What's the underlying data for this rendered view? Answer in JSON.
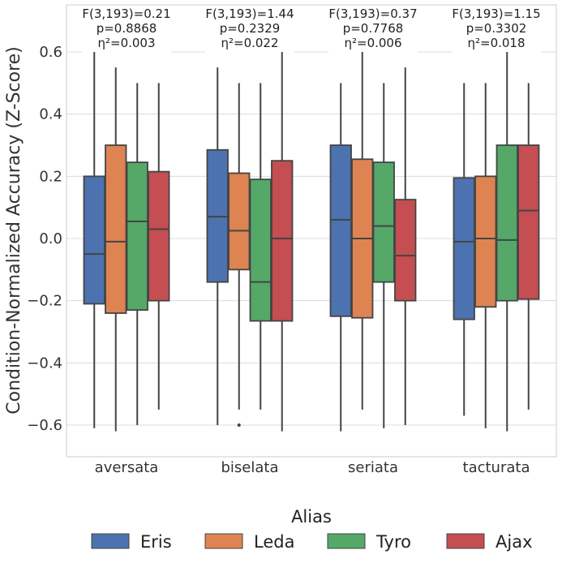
{
  "chart_data": {
    "type": "box",
    "ylabel": "Condition-Normalized Accuracy (Z-Score)",
    "xlabel": "",
    "ylim": [
      -0.7,
      0.75
    ],
    "yticks": [
      0.6,
      0.4,
      0.2,
      0.0,
      -0.2,
      -0.4,
      -0.6
    ],
    "ytick_labels": [
      "0.6",
      "0.4",
      "0.2",
      "0.0",
      "−0.2",
      "−0.4",
      "−0.6"
    ],
    "categories": [
      "aversata",
      "biselata",
      "seriata",
      "tacturata"
    ],
    "legend": {
      "title": "Alias",
      "position": "bottom-center",
      "entries": [
        "Eris",
        "Leda",
        "Tyro",
        "Ajax"
      ]
    },
    "colors": {
      "Eris": "#4c72b0",
      "Leda": "#dd8452",
      "Tyro": "#55a868",
      "Ajax": "#c44e52"
    },
    "annotations": [
      {
        "f": "F(3,193)=0.21",
        "p": "p=0.8868",
        "eta": "η²=0.003"
      },
      {
        "f": "F(3,193)=1.44",
        "p": "p=0.2329",
        "eta": "η²=0.022"
      },
      {
        "f": "F(3,193)=0.37",
        "p": "p=0.7768",
        "eta": "η²=0.006"
      },
      {
        "f": "F(3,193)=1.15",
        "p": "p=0.3302",
        "eta": "η²=0.018"
      }
    ],
    "series": [
      {
        "name": "Eris",
        "boxes": [
          {
            "min": -0.61,
            "q1": -0.21,
            "median": -0.05,
            "q3": 0.2,
            "max": 0.6,
            "outliers": []
          },
          {
            "min": -0.6,
            "q1": -0.14,
            "median": 0.07,
            "q3": 0.285,
            "max": 0.55,
            "outliers": []
          },
          {
            "min": -0.62,
            "q1": -0.25,
            "median": 0.06,
            "q3": 0.3,
            "max": 0.5,
            "outliers": []
          },
          {
            "min": -0.57,
            "q1": -0.26,
            "median": -0.01,
            "q3": 0.195,
            "max": 0.5,
            "outliers": []
          }
        ]
      },
      {
        "name": "Leda",
        "boxes": [
          {
            "min": -0.62,
            "q1": -0.24,
            "median": -0.01,
            "q3": 0.3,
            "max": 0.55,
            "outliers": []
          },
          {
            "min": -0.55,
            "q1": -0.1,
            "median": 0.025,
            "q3": 0.21,
            "max": 0.5,
            "outliers": [
              -0.6
            ]
          },
          {
            "min": -0.55,
            "q1": -0.255,
            "median": 0.0,
            "q3": 0.255,
            "max": 0.6,
            "outliers": []
          },
          {
            "min": -0.61,
            "q1": -0.22,
            "median": 0.0,
            "q3": 0.2,
            "max": 0.5,
            "outliers": []
          }
        ]
      },
      {
        "name": "Tyro",
        "boxes": [
          {
            "min": -0.6,
            "q1": -0.23,
            "median": 0.055,
            "q3": 0.245,
            "max": 0.5,
            "outliers": []
          },
          {
            "min": -0.55,
            "q1": -0.265,
            "median": -0.14,
            "q3": 0.19,
            "max": 0.5,
            "outliers": []
          },
          {
            "min": -0.61,
            "q1": -0.14,
            "median": 0.04,
            "q3": 0.245,
            "max": 0.5,
            "outliers": []
          },
          {
            "min": -0.62,
            "q1": -0.2,
            "median": -0.005,
            "q3": 0.3,
            "max": 0.6,
            "outliers": []
          }
        ]
      },
      {
        "name": "Ajax",
        "boxes": [
          {
            "min": -0.55,
            "q1": -0.2,
            "median": 0.03,
            "q3": 0.215,
            "max": 0.5,
            "outliers": []
          },
          {
            "min": -0.62,
            "q1": -0.265,
            "median": 0.0,
            "q3": 0.25,
            "max": 0.6,
            "outliers": []
          },
          {
            "min": -0.6,
            "q1": -0.2,
            "median": -0.055,
            "q3": 0.125,
            "max": 0.55,
            "outliers": []
          },
          {
            "min": -0.55,
            "q1": -0.195,
            "median": 0.09,
            "q3": 0.3,
            "max": 0.5,
            "outliers": []
          }
        ]
      }
    ]
  }
}
